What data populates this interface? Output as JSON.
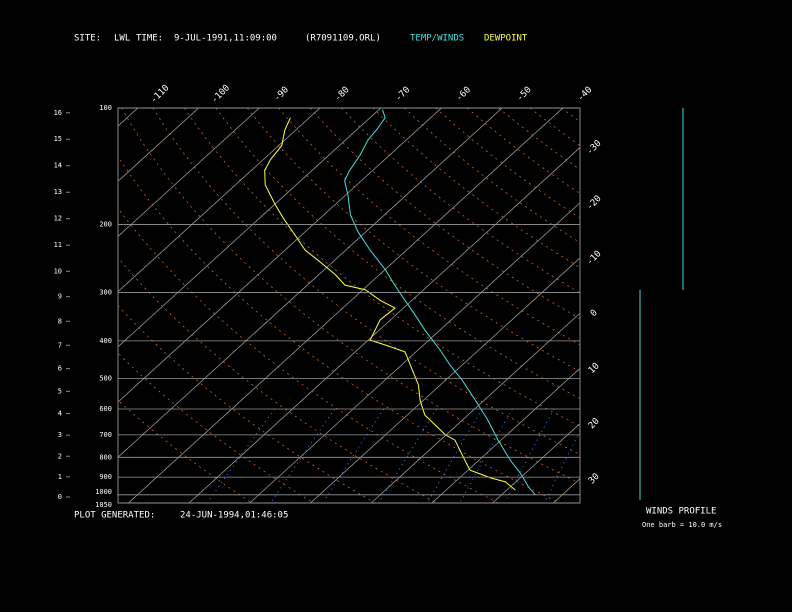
{
  "chart_data": {
    "type": "skewt",
    "header": {
      "site_label": "SITE:",
      "site": "LWL",
      "time_label": "TIME:",
      "time": "9-JUL-1991,11:09:00",
      "file": "(R7091109.ORL)"
    },
    "footer": {
      "generated_label": "PLOT GENERATED:",
      "generated": "24-JUN-1994,01:46:05"
    },
    "winds_title": "WINDS PROFILE",
    "winds_note": "One barb = 10.0 m/s",
    "ylim": [
      1050,
      100
    ],
    "log_y": true,
    "yticks": [
      100,
      200,
      300,
      400,
      500,
      600,
      700,
      800,
      900,
      1000,
      1050
    ],
    "xlim": [
      -41.7,
      34.4
    ],
    "xticks": [
      -110,
      -100,
      -90,
      -80,
      -70,
      -60,
      -50,
      -40,
      -30,
      -20,
      -10,
      0,
      10,
      20,
      30
    ],
    "altitude_ticks": [
      0,
      1,
      2,
      3,
      4,
      5,
      6,
      7,
      8,
      9,
      10,
      11,
      12,
      13,
      14,
      15,
      16
    ],
    "grid": true,
    "series": [
      {
        "name": "TEMP/WINDS",
        "color": "#40e0e0",
        "pressure": [
          1001,
          954,
          878,
          813,
          722,
          641,
          569,
          505,
          462,
          422,
          375,
          343,
          314,
          287,
          262,
          233,
          209,
          189,
          168,
          154,
          145,
          132,
          121,
          113,
          106,
          101
        ],
        "values": [
          25.6,
          23.0,
          19.1,
          15.1,
          9.5,
          4.2,
          -1.5,
          -7.3,
          -12.0,
          -16.4,
          -22.5,
          -26.8,
          -31.2,
          -35.6,
          -39.9,
          -46.0,
          -51.3,
          -55.6,
          -59.6,
          -62.8,
          -63.8,
          -64.9,
          -66.3,
          -66.8,
          -67.5,
          -69.4
        ]
      },
      {
        "name": "DEWPOINT",
        "color": "#ffff40",
        "pressure": [
          972,
          926,
          904,
          863,
          789,
          722,
          700,
          622,
          569,
          520,
          476,
          427,
          410,
          398,
          353,
          329,
          314,
          295,
          287,
          270,
          250,
          233,
          213,
          195,
          178,
          158,
          145,
          136,
          125,
          114,
          106
        ],
        "values": [
          21.4,
          18.3,
          15.1,
          10.3,
          6.3,
          2.4,
          -0.1,
          -7.1,
          -10.6,
          -13.6,
          -17.3,
          -21.8,
          -26.3,
          -29.7,
          -31.7,
          -31.4,
          -35.3,
          -39.6,
          -43.8,
          -47.2,
          -52.1,
          -56.7,
          -61.1,
          -65.5,
          -69.8,
          -75.1,
          -77.8,
          -78.8,
          -79.5,
          -81.8,
          -83.1
        ]
      }
    ]
  }
}
